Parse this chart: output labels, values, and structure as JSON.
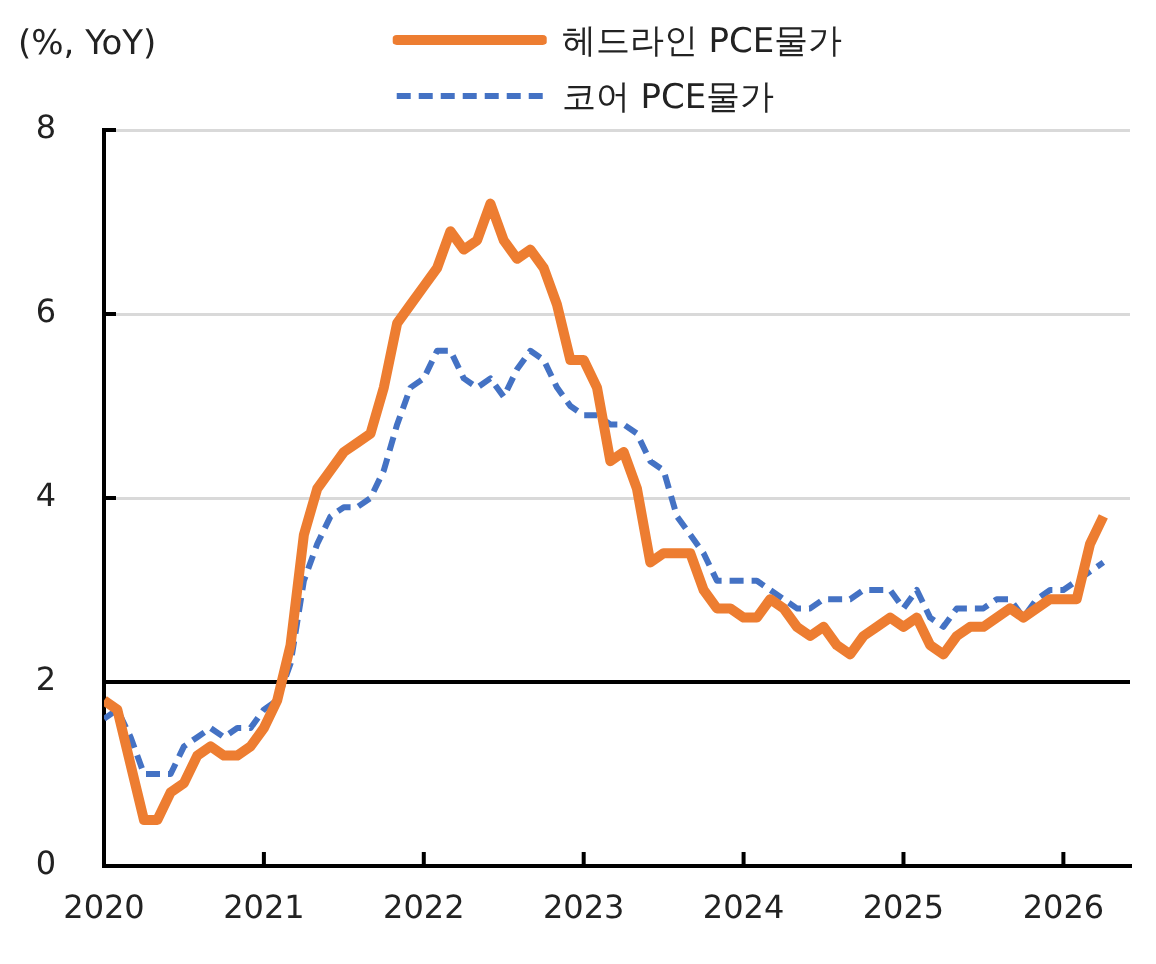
{
  "chart_data": {
    "type": "line",
    "ylabel": "(%, YoY)",
    "x": [
      "2020-01",
      "2020-02",
      "2020-03",
      "2020-04",
      "2020-05",
      "2020-06",
      "2020-07",
      "2020-08",
      "2020-09",
      "2020-10",
      "2020-11",
      "2020-12",
      "2021-01",
      "2021-02",
      "2021-03",
      "2021-04",
      "2021-05",
      "2021-06",
      "2021-07",
      "2021-08",
      "2021-09",
      "2021-10",
      "2021-11",
      "2021-12",
      "2022-01",
      "2022-02",
      "2022-03",
      "2022-04",
      "2022-05",
      "2022-06",
      "2022-07",
      "2022-08",
      "2022-09",
      "2022-10",
      "2022-11",
      "2022-12",
      "2023-01",
      "2023-02",
      "2023-03",
      "2023-04",
      "2023-05",
      "2023-06",
      "2023-07",
      "2023-08",
      "2023-09",
      "2023-10",
      "2023-11",
      "2023-12",
      "2024-01",
      "2024-02",
      "2024-03",
      "2024-04",
      "2024-05",
      "2024-06",
      "2024-07",
      "2024-08",
      "2024-09",
      "2024-10",
      "2024-11",
      "2024-12",
      "2025-01",
      "2025-02",
      "2025-03",
      "2025-04",
      "2025-05",
      "2025-06",
      "2025-07",
      "2025-08",
      "2025-09",
      "2025-10",
      "2025-11",
      "2025-12",
      "2026-01",
      "2026-02",
      "2026-03",
      "2026-04"
    ],
    "series": [
      {
        "name": "헤드라인 PCE물가",
        "color": "#ed7d31",
        "line_style": "solid",
        "values": [
          1.8,
          1.7,
          1.1,
          0.5,
          0.5,
          0.8,
          0.9,
          1.2,
          1.3,
          1.2,
          1.2,
          1.3,
          1.5,
          1.8,
          2.4,
          3.6,
          4.1,
          4.3,
          4.5,
          4.6,
          4.7,
          5.2,
          5.9,
          6.1,
          6.3,
          6.5,
          6.9,
          6.7,
          6.8,
          7.2,
          6.8,
          6.6,
          6.7,
          6.5,
          6.1,
          5.5,
          5.5,
          5.2,
          4.4,
          4.5,
          4.1,
          3.3,
          3.4,
          3.4,
          3.4,
          3.0,
          2.8,
          2.8,
          2.7,
          2.7,
          2.9,
          2.8,
          2.6,
          2.5,
          2.6,
          2.4,
          2.3,
          2.5,
          2.6,
          2.7,
          2.6,
          2.7,
          2.4,
          2.3,
          2.5,
          2.6,
          2.6,
          2.7,
          2.8,
          2.7,
          2.8,
          2.9,
          2.9,
          2.9,
          3.5,
          3.8
        ]
      },
      {
        "name": "코어 PCE물가",
        "color": "#4472c4",
        "line_style": "dashed",
        "values": [
          1.6,
          1.7,
          1.4,
          1.0,
          1.0,
          1.0,
          1.3,
          1.4,
          1.5,
          1.4,
          1.5,
          1.5,
          1.7,
          1.8,
          2.2,
          3.1,
          3.5,
          3.8,
          3.9,
          3.9,
          4.0,
          4.3,
          4.8,
          5.2,
          5.3,
          5.6,
          5.6,
          5.3,
          5.2,
          5.3,
          5.1,
          5.4,
          5.6,
          5.5,
          5.2,
          5.0,
          4.9,
          4.9,
          4.8,
          4.8,
          4.7,
          4.4,
          4.3,
          3.8,
          3.6,
          3.4,
          3.1,
          3.1,
          3.1,
          3.1,
          3.0,
          2.9,
          2.8,
          2.8,
          2.9,
          2.9,
          2.9,
          3.0,
          3.0,
          3.0,
          2.8,
          3.0,
          2.7,
          2.6,
          2.8,
          2.8,
          2.8,
          2.9,
          2.9,
          2.7,
          2.9,
          3.0,
          3.0,
          3.1,
          3.2,
          3.3
        ]
      }
    ],
    "xlim": [
      "2020-01",
      "2026-06"
    ],
    "xticks": [
      "2020",
      "2021",
      "2022",
      "2023",
      "2024",
      "2025",
      "2026"
    ],
    "ylim": [
      0,
      8
    ],
    "yticks": [
      0,
      2,
      4,
      6,
      8
    ],
    "grid": "y",
    "legend": "top",
    "ref_lines": [
      {
        "axis": "y",
        "value": 2,
        "color": "#000000"
      }
    ]
  }
}
